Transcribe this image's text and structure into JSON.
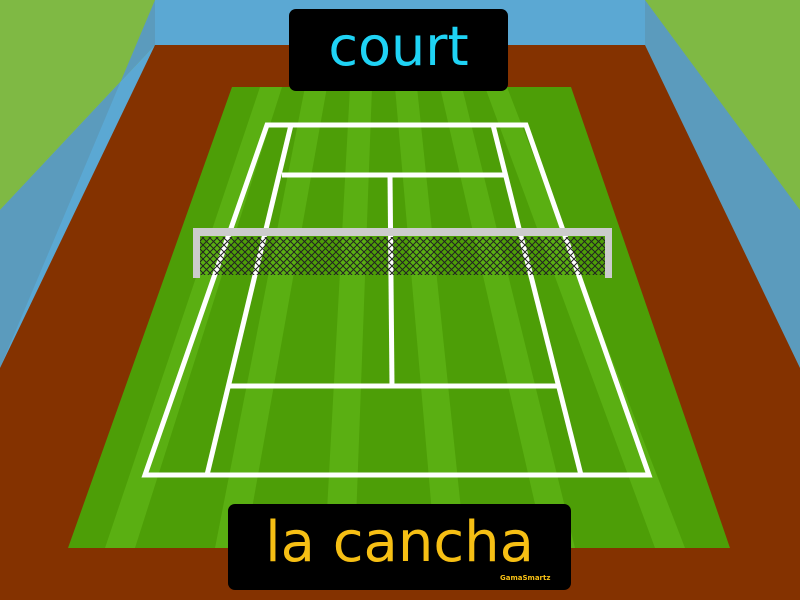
{
  "labels": {
    "english": "court",
    "spanish": "la cancha",
    "watermark": "GamaSmartz"
  },
  "colors": {
    "sky": "#5ba8d3",
    "wall": "#5b9bbd",
    "side_grass": "#7fb944",
    "clay": "#843200",
    "court_grass": "#4d9e07",
    "court_stripe": "#5aaf12",
    "lines": "#ffffff",
    "net_post": "#cccccc",
    "english_text": "#1fd3f5",
    "spanish_text": "#f6bf14",
    "label_bg": "#000000"
  },
  "icons": [
    "tennis-court-illustration",
    "tennis-net-icon"
  ]
}
